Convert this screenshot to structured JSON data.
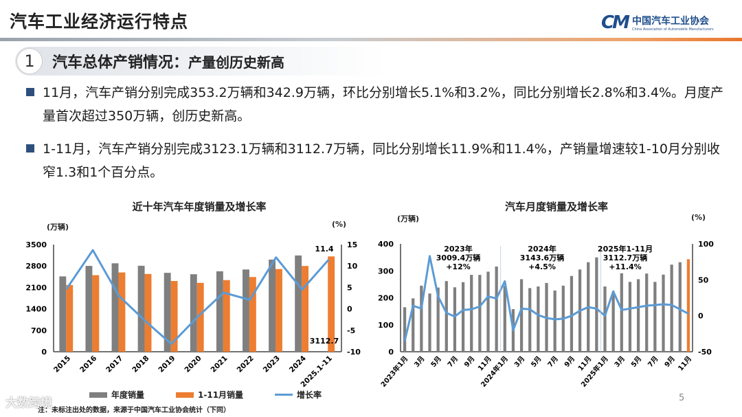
{
  "header": {
    "title": "汽车工业经济运行特点",
    "logo_mark": "CM",
    "logo_cn": "中国汽车工业协会",
    "logo_en": "China Association of Automobile Manufacturers"
  },
  "section": {
    "number": "1",
    "title": "汽车总体产销情况：",
    "subtitle": "产量创历史新高"
  },
  "bullets": [
    "11月，汽车产销分别完成353.2万辆和342.9万辆，环比分别增长5.1%和3.2%，同比分别增长2.8%和3.4%。月度产量首次超过350万辆，创历史新高。",
    "1-11月，汽车产销分别完成3123.1万辆和3112.7万辆，同比分别增长11.9%和11.4%，产销量增速较1-10月分别收窄1.3和1个百分点。"
  ],
  "footer": {
    "note": "注：未标注出处的数据，来源于中国汽车工业协会统计（下同）",
    "page": "5",
    "watermark": "大数跨境"
  },
  "colors": {
    "gray": "#7f7f7f",
    "orange": "#ed7d31",
    "blue": "#5b9bd5",
    "navy": "#2e4f7c"
  },
  "chart_data": [
    {
      "type": "bar+line",
      "title": "近十年汽车年度销量及增长率",
      "y_unit": "(万辆)",
      "y2_unit": "(%)",
      "categories": [
        "2015",
        "2016",
        "2017",
        "2018",
        "2019",
        "2020",
        "2021",
        "2022",
        "2023",
        "2024",
        "2025.1-11"
      ],
      "ylim": [
        0,
        3500
      ],
      "yticks": [
        "0",
        "700",
        "1400",
        "2100",
        "2800",
        "3500"
      ],
      "y2lim": [
        -10,
        15
      ],
      "y2ticks": [
        "-10",
        "-5",
        "0",
        "5",
        "10",
        "15"
      ],
      "series": [
        {
          "name": "年度销量",
          "kind": "bar",
          "color": "#7f7f7f",
          "values": [
            2460,
            2803,
            2888,
            2808,
            2577,
            2531,
            2627,
            2686,
            3009,
            3144,
            null
          ]
        },
        {
          "name": "1-11月销量",
          "kind": "bar",
          "color": "#ed7d31",
          "values": [
            2180,
            2500,
            2590,
            2540,
            2310,
            2250,
            2340,
            2440,
            2700,
            2800,
            3112.7
          ]
        },
        {
          "name": "增长率",
          "kind": "line",
          "axis": "right",
          "color": "#5b9bd5",
          "values": [
            4.7,
            13.7,
            3.0,
            -2.8,
            -8.2,
            -1.9,
            3.8,
            2.1,
            12.0,
            4.5,
            11.4
          ]
        }
      ],
      "annotations": [
        "11.4",
        "3112.7"
      ],
      "legend": "bottom",
      "grid": false
    },
    {
      "type": "bar+line",
      "title": "汽车月度销量及增长率",
      "y_unit": "(万辆)",
      "y2_unit": "(%)",
      "categories": [
        "2023年1月",
        "2月",
        "3月",
        "4月",
        "5月",
        "6月",
        "7月",
        "8月",
        "9月",
        "10月",
        "11月",
        "12月",
        "2024年1月",
        "2月",
        "3月",
        "4月",
        "5月",
        "6月",
        "7月",
        "8月",
        "9月",
        "10月",
        "11月",
        "12月",
        "2025年1月",
        "2月",
        "3月",
        "4月",
        "5月",
        "6月",
        "7月",
        "8月",
        "9月",
        "10月",
        "11月"
      ],
      "tick_labels": [
        "2023年1月",
        "3月",
        "5月",
        "7月",
        "9月",
        "11月",
        "2024年1月",
        "3月",
        "5月",
        "7月",
        "9月",
        "11月",
        "2025年1月",
        "3月",
        "5月",
        "7月",
        "9月",
        "11月"
      ],
      "ylim": [
        0,
        400
      ],
      "yticks": [
        "0",
        "100",
        "200",
        "300",
        "400"
      ],
      "y2lim": [
        -50,
        100
      ],
      "y2ticks": [
        "-50",
        "0",
        "50",
        "100"
      ],
      "series": [
        {
          "name": "销量",
          "kind": "bar",
          "color": "#7f7f7f",
          "highlight_last": "#ed7d31",
          "values": [
            165,
            198,
            245,
            216,
            238,
            262,
            239,
            258,
            285,
            285,
            297,
            316,
            244,
            158,
            269,
            236,
            242,
            255,
            227,
            245,
            281,
            305,
            332,
            350,
            242,
            213,
            291,
            259,
            269,
            290,
            259,
            286,
            323,
            332,
            343
          ]
        },
        {
          "name": "增长率",
          "kind": "line",
          "axis": "right",
          "color": "#5b9bd5",
          "values": [
            -35,
            14,
            10,
            83,
            27,
            4,
            -1,
            8,
            9,
            13,
            27,
            24,
            48,
            -20,
            10,
            9,
            1,
            -3,
            -5,
            -4,
            0,
            7,
            12,
            10,
            0,
            34,
            8,
            10,
            12,
            14,
            15,
            16,
            15,
            9,
            3
          ]
        }
      ],
      "annotations": [
        {
          "year": "2023年",
          "total": "3009.4万辆",
          "growth": "+12%"
        },
        {
          "year": "2024年",
          "total": "3143.6万辆",
          "growth": "+4.5%"
        },
        {
          "year": "2025年1-11月",
          "total": "3112.7万辆",
          "growth": "+11.4%"
        }
      ],
      "grid": false
    }
  ]
}
